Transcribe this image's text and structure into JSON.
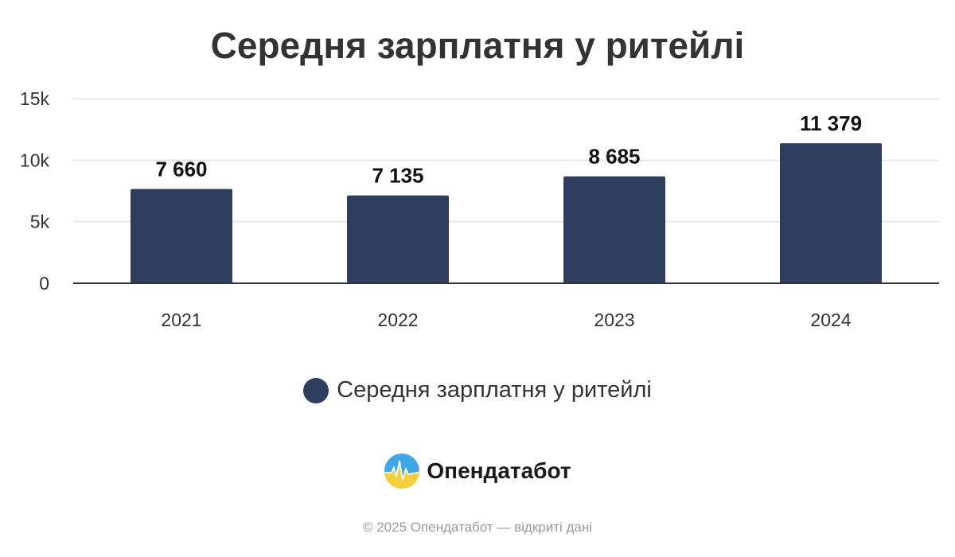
{
  "colors": {
    "bar": "#2f3e5e",
    "grid": "#e3e3e3",
    "axis": "#333333",
    "text": "#333333",
    "footer": "#9a9a9a"
  },
  "chart_data": {
    "type": "bar",
    "title": "Середня зарплатня у ритейлі",
    "categories": [
      "2021",
      "2022",
      "2023",
      "2024"
    ],
    "series": [
      {
        "name": "Середня зарплатня у ритейлі",
        "values": [
          7660,
          7135,
          8685,
          11379
        ]
      }
    ],
    "data_labels": [
      "7 660",
      "7 135",
      "8 685",
      "11 379"
    ],
    "yticks": [
      0,
      5000,
      10000,
      15000
    ],
    "ytick_labels": [
      "0",
      "5k",
      "10k",
      "15k"
    ],
    "ylim": [
      0,
      15000
    ],
    "grid": true,
    "legend": "bottom-center"
  },
  "brand": {
    "name": "Опендатабот",
    "logo_icon": "opendatabot-logo-icon"
  },
  "footer": {
    "copyright": "© 2025 Опендатабот — відкриті дані"
  }
}
